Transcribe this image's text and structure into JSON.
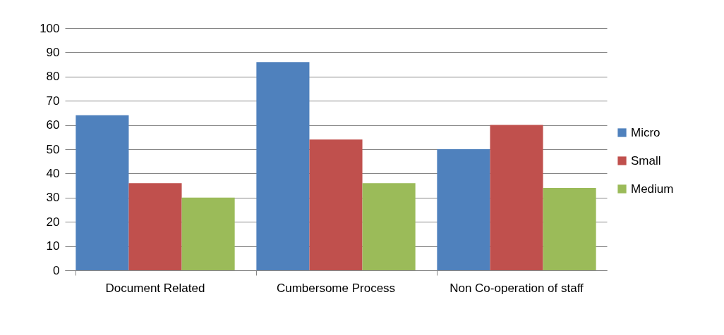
{
  "chart_data": {
    "type": "bar",
    "categories": [
      "Document Related",
      "Cumbersome Process",
      "Non Co-operation of staff"
    ],
    "series": [
      {
        "name": "Micro",
        "color": "#4f81bd",
        "values": [
          64,
          86,
          50
        ]
      },
      {
        "name": "Small",
        "color": "#c0504d",
        "values": [
          36,
          54,
          60
        ]
      },
      {
        "name": "Medium",
        "color": "#9bbb59",
        "values": [
          30,
          36,
          34
        ]
      }
    ],
    "ylim": [
      0,
      100
    ],
    "yticks": [
      0,
      10,
      20,
      30,
      40,
      50,
      60,
      70,
      80,
      90,
      100
    ],
    "grid": "y",
    "legend": "right"
  }
}
